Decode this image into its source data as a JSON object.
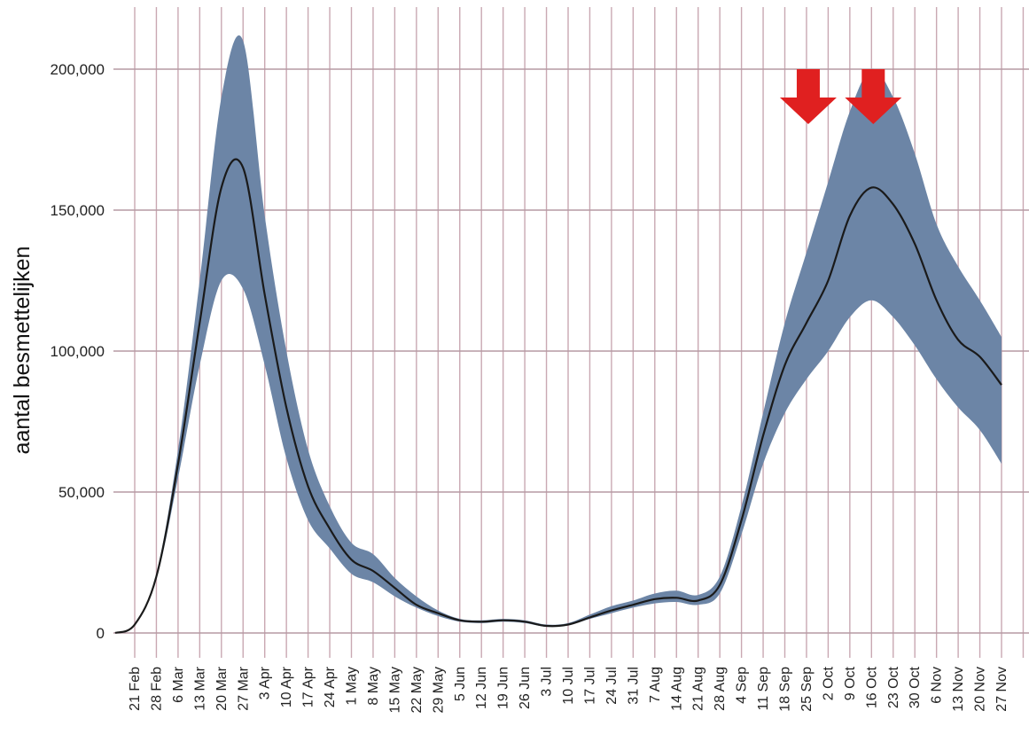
{
  "chart_data": {
    "type": "area",
    "ylabel": "aantal besmettelijken",
    "xlabel": "",
    "ylim": [
      0,
      200000
    ],
    "yticks": [
      0,
      50000,
      100000,
      150000,
      200000
    ],
    "ytick_labels": [
      "0",
      "50,000",
      "100,000",
      "150,000",
      "200,000"
    ],
    "grid": true,
    "x": [
      "21 Feb",
      "28 Feb",
      "6 Mar",
      "13 Mar",
      "20 Mar",
      "27 Mar",
      "3 Apr",
      "10 Apr",
      "17 Apr",
      "24 Apr",
      "1 May",
      "8 May",
      "15 May",
      "22 May",
      "29 May",
      "5 Jun",
      "12 Jun",
      "19 Jun",
      "26 Jun",
      "3 Jul",
      "10 Jul",
      "17 Jul",
      "24 Jul",
      "31 Jul",
      "7 Aug",
      "14 Aug",
      "21 Aug",
      "28 Aug",
      "4 Sep",
      "11 Sep",
      "18 Sep",
      "25 Sep",
      "2 Oct",
      "9 Oct",
      "16 Oct",
      "23 Oct",
      "30 Oct",
      "6 Nov",
      "13 Nov",
      "20 Nov",
      "27 Nov"
    ],
    "series": [
      {
        "values": [
          3000,
          20000,
          60000,
          110000,
          158000,
          165000,
          120000,
          80000,
          52000,
          37000,
          26000,
          22000,
          16000,
          10000,
          7000,
          4500,
          4000,
          4500,
          4000,
          2500,
          3000,
          5500,
          8000,
          10000,
          12000,
          12500,
          11500,
          17000,
          40000,
          70000,
          95000,
          110000,
          125000,
          148000,
          158000,
          152000,
          138000,
          118000,
          104000,
          98000,
          88000
        ],
        "lower": [
          3000,
          19000,
          55000,
          95000,
          125000,
          122000,
          95000,
          62000,
          40000,
          30000,
          21000,
          18000,
          13000,
          9000,
          6000,
          4000,
          3500,
          4000,
          3500,
          2200,
          2700,
          5000,
          7000,
          9000,
          10500,
          11000,
          10000,
          14000,
          35000,
          60000,
          78000,
          90000,
          100000,
          112000,
          118000,
          112000,
          102000,
          90000,
          80000,
          72000,
          60000
        ],
        "upper": [
          3000,
          21000,
          65000,
          125000,
          190000,
          210000,
          148000,
          100000,
          65000,
          45000,
          32000,
          28000,
          19500,
          13000,
          8000,
          5000,
          4500,
          5000,
          4500,
          3000,
          3500,
          6500,
          9500,
          11500,
          14000,
          15000,
          13500,
          20000,
          45000,
          78000,
          110000,
          135000,
          160000,
          185000,
          200000,
          190000,
          170000,
          145000,
          130000,
          118000,
          105000
        ]
      }
    ],
    "markers": [
      {
        "shape": "down-arrow",
        "x": "25 Sep",
        "color": "#e02020"
      },
      {
        "shape": "down-arrow",
        "x": "16 Oct",
        "color": "#e02020"
      }
    ]
  },
  "colors": {
    "band": "#6c85a6",
    "line": "#1a1a1a",
    "grid_vertical": "#c9a8b2",
    "grid_horizontal": "#b59aa3",
    "arrow": "#e02020"
  }
}
